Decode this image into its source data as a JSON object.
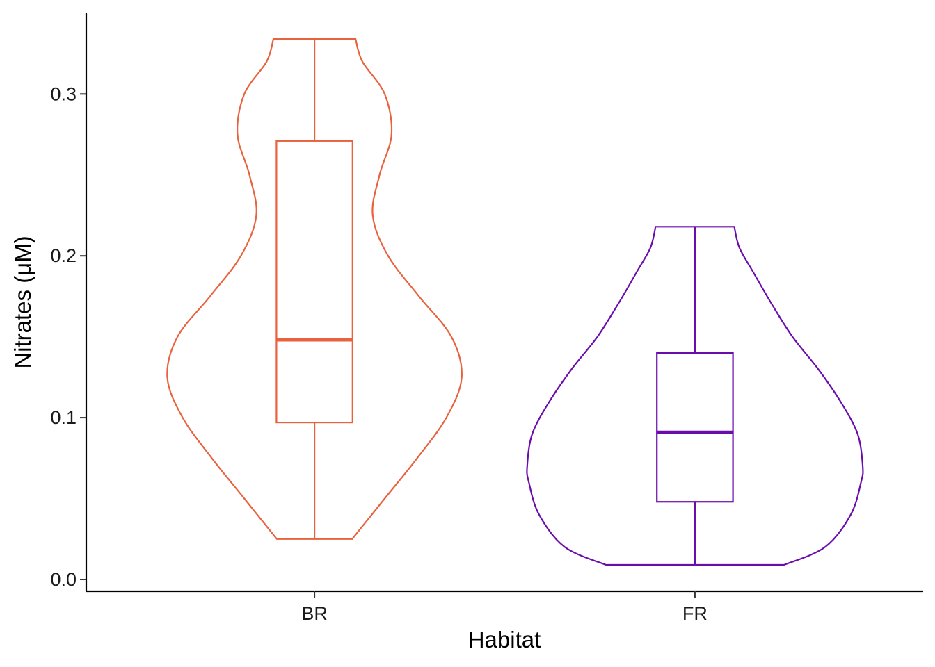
{
  "chart_data": {
    "type": "violin",
    "xlabel": "Habitat",
    "ylabel": "Nitrates (μM)",
    "ylim": [
      -0.007,
      0.352
    ],
    "y_ticks": [
      0.0,
      0.1,
      0.2,
      0.3
    ],
    "y_tick_labels": [
      "0.0",
      "0.1",
      "0.2",
      "0.3"
    ],
    "categories": [
      "BR",
      "FR"
    ],
    "grid": false,
    "legend": "none",
    "series": [
      {
        "category": "BR",
        "color": "#E8623D",
        "min": 0.025,
        "q1": 0.097,
        "median": 0.148,
        "q3": 0.271,
        "max": 0.334,
        "density_profile": [
          [
            0.025,
            0.22
          ],
          [
            0.05,
            0.41
          ],
          [
            0.075,
            0.6
          ],
          [
            0.1,
            0.77
          ],
          [
            0.125,
            0.86
          ],
          [
            0.15,
            0.8
          ],
          [
            0.175,
            0.61
          ],
          [
            0.2,
            0.43
          ],
          [
            0.225,
            0.34
          ],
          [
            0.25,
            0.38
          ],
          [
            0.275,
            0.45
          ],
          [
            0.3,
            0.41
          ],
          [
            0.32,
            0.28
          ],
          [
            0.334,
            0.24
          ]
        ]
      },
      {
        "category": "FR",
        "color": "#6A0DAD",
        "min": 0.009,
        "q1": 0.048,
        "median": 0.091,
        "q3": 0.14,
        "max": 0.218,
        "density_profile": [
          [
            0.009,
            0.52
          ],
          [
            0.02,
            0.76
          ],
          [
            0.04,
            0.91
          ],
          [
            0.06,
            0.97
          ],
          [
            0.07,
            0.98
          ],
          [
            0.09,
            0.95
          ],
          [
            0.11,
            0.85
          ],
          [
            0.13,
            0.72
          ],
          [
            0.15,
            0.57
          ],
          [
            0.17,
            0.45
          ],
          [
            0.19,
            0.34
          ],
          [
            0.205,
            0.26
          ],
          [
            0.218,
            0.23
          ]
        ]
      }
    ]
  }
}
